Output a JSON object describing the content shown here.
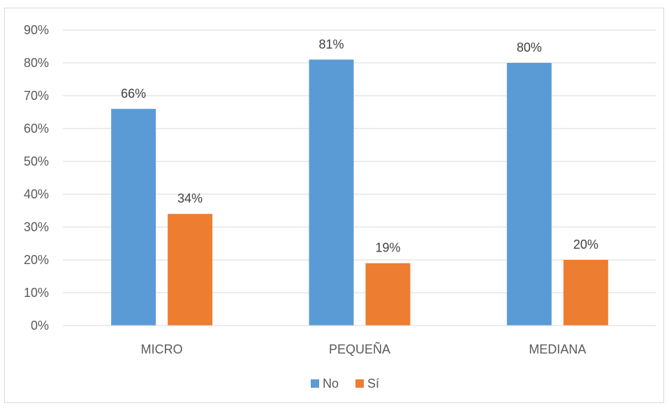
{
  "chart_data": {
    "type": "bar",
    "title": "",
    "xlabel": "",
    "ylabel": "",
    "categories": [
      "MICRO",
      "PEQUEÑA",
      "MEDIANA"
    ],
    "series": [
      {
        "name": "No",
        "values": [
          66,
          81,
          80
        ],
        "labels": [
          "66%",
          "81%",
          "80%"
        ],
        "color": "#5b9bd5"
      },
      {
        "name": "Sí",
        "values": [
          34,
          19,
          20
        ],
        "labels": [
          "34%",
          "19%",
          "20%"
        ],
        "color": "#ed7d31"
      }
    ],
    "ylim": [
      0,
      90
    ],
    "yticks": [
      "0%",
      "10%",
      "20%",
      "30%",
      "40%",
      "50%",
      "60%",
      "70%",
      "80%",
      "90%"
    ],
    "grid": true,
    "legend_position": "bottom"
  }
}
